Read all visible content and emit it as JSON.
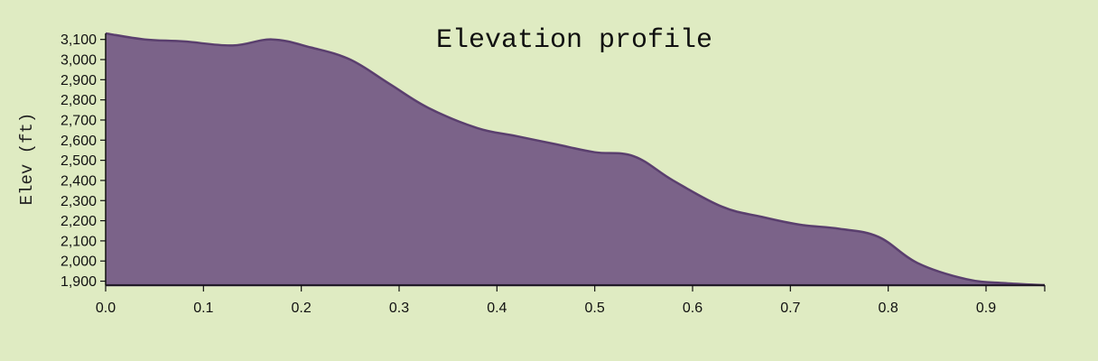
{
  "chart_data": {
    "type": "area",
    "title": "Elevation profile",
    "xlabel": "",
    "ylabel": "Elev (ft)",
    "xlim": [
      0,
      0.96
    ],
    "ylim": [
      1880,
      3130
    ],
    "x_ticks": [
      0.0,
      0.1,
      0.2,
      0.3,
      0.4,
      0.5,
      0.6,
      0.7,
      0.8,
      0.9
    ],
    "x_tick_labels": [
      "0.0",
      "0.1",
      "0.2",
      "0.3",
      "0.4",
      "0.5",
      "0.6",
      "0.7",
      "0.8",
      "0.9"
    ],
    "y_ticks": [
      1900,
      2000,
      2100,
      2200,
      2300,
      2400,
      2500,
      2600,
      2700,
      2800,
      2900,
      3000,
      3100
    ],
    "y_tick_labels": [
      "1,900",
      "2,000",
      "2,100",
      "2,200",
      "2,300",
      "2,400",
      "2,500",
      "2,600",
      "2,700",
      "2,800",
      "2,900",
      "3,000",
      "3,100"
    ],
    "grid": false,
    "colors": {
      "fill": "#7b6389",
      "stroke": "#5a3f6e",
      "background": "#dfebc2"
    },
    "series": [
      {
        "x": [
          0.0,
          0.04,
          0.08,
          0.13,
          0.17,
          0.21,
          0.25,
          0.29,
          0.33,
          0.38,
          0.42,
          0.46,
          0.5,
          0.54,
          0.58,
          0.63,
          0.67,
          0.71,
          0.75,
          0.79,
          0.83,
          0.88,
          0.92,
          0.96
        ],
        "y": [
          3130,
          3100,
          3090,
          3070,
          3100,
          3060,
          3000,
          2880,
          2760,
          2660,
          2620,
          2580,
          2540,
          2520,
          2400,
          2270,
          2220,
          2180,
          2160,
          2120,
          1990,
          1910,
          1890,
          1880
        ]
      }
    ]
  }
}
